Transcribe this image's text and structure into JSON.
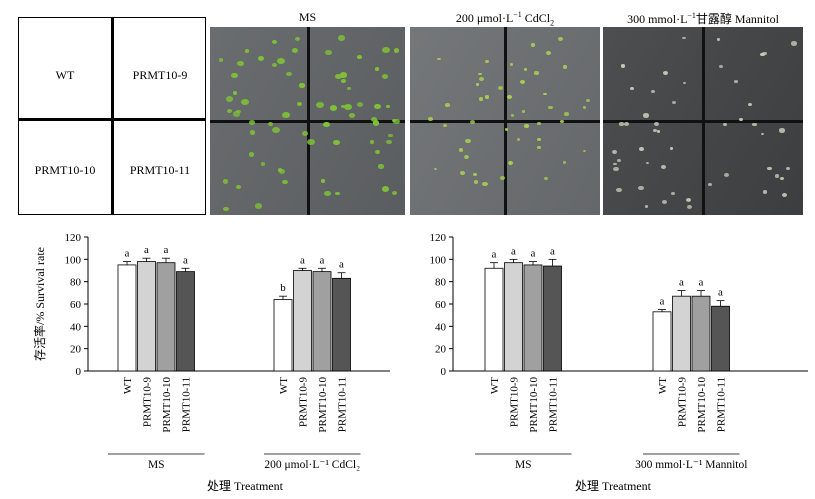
{
  "layout_grid": {
    "cells": [
      "WT",
      "PRMT10-9",
      "PRMT10-10",
      "PRMT10-11"
    ]
  },
  "photos": [
    {
      "title": "MS",
      "seedling_color": "#7fc236"
    },
    {
      "title_main": "200 μmol·L",
      "title_sup": "−1",
      "title_tail": " CdCl",
      "title_sub": "2",
      "seedling_color": "#a9cf52"
    },
    {
      "title_main": "300 mmol·L",
      "title_sup": "−1",
      "title_tail": "甘露醇 Mannitol",
      "seedling_color": "#c9c6b8"
    }
  ],
  "colors": {
    "WT": "#ffffff",
    "PRMT10-9": "#d3d3d3",
    "PRMT10-10": "#a0a0a0",
    "PRMT10-11": "#555555"
  },
  "chart_data": [
    {
      "type": "bar",
      "ylabel": "存活率/% Survival rate",
      "xlabel": "处理 Treatment",
      "ylim": [
        0,
        120
      ],
      "yticks": [
        0,
        20,
        40,
        60,
        80,
        100,
        120
      ],
      "series_names": [
        "WT",
        "PRMT10-9",
        "PRMT10-10",
        "PRMT10-11"
      ],
      "groups": [
        {
          "label": "MS",
          "values": [
            95,
            98,
            97,
            89
          ],
          "errors": [
            3,
            3,
            4,
            3
          ],
          "letters": [
            "a",
            "a",
            "a",
            "a"
          ]
        },
        {
          "label": "200 μmol·L⁻¹ CdCl₂",
          "values": [
            64,
            90,
            89,
            83
          ],
          "errors": [
            3,
            2,
            3,
            5
          ],
          "letters": [
            "b",
            "a",
            "a",
            "a"
          ]
        }
      ]
    },
    {
      "type": "bar",
      "ylabel": "",
      "xlabel": "处理 Treatment",
      "ylim": [
        0,
        120
      ],
      "yticks": [
        0,
        20,
        40,
        60,
        80,
        100,
        120
      ],
      "series_names": [
        "WT",
        "PRMT10-9",
        "PRMT10-10",
        "PRMT10-11"
      ],
      "groups": [
        {
          "label": "MS",
          "values": [
            92,
            97,
            95,
            94
          ],
          "errors": [
            5,
            3,
            3,
            6
          ],
          "letters": [
            "a",
            "a",
            "a",
            "a"
          ]
        },
        {
          "label": "300 mmol·L⁻¹ Mannitol",
          "values": [
            53,
            67,
            67,
            58
          ],
          "errors": [
            2,
            5,
            5,
            5
          ],
          "letters": [
            "a",
            "a",
            "a",
            "a"
          ]
        }
      ]
    }
  ]
}
